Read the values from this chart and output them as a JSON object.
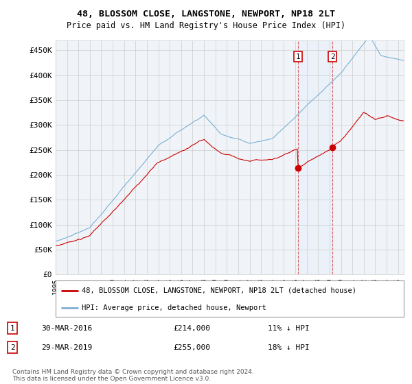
{
  "title": "48, BLOSSOM CLOSE, LANGSTONE, NEWPORT, NP18 2LT",
  "subtitle": "Price paid vs. HM Land Registry's House Price Index (HPI)",
  "ylabel_ticks": [
    "£0",
    "£50K",
    "£100K",
    "£150K",
    "£200K",
    "£250K",
    "£300K",
    "£350K",
    "£400K",
    "£450K"
  ],
  "ytick_values": [
    0,
    50000,
    100000,
    150000,
    200000,
    250000,
    300000,
    350000,
    400000,
    450000
  ],
  "ylim": [
    0,
    470000
  ],
  "xlim_start": 1995.0,
  "xlim_end": 2025.5,
  "transaction1": {
    "date": 2016.25,
    "price": 214000,
    "label": "1",
    "text": "30-MAR-2016",
    "amount": "£214,000",
    "hpi": "11% ↓ HPI"
  },
  "transaction2": {
    "date": 2019.25,
    "price": 255000,
    "label": "2",
    "text": "29-MAR-2019",
    "amount": "£255,000",
    "hpi": "18% ↓ HPI"
  },
  "legend_property": "48, BLOSSOM CLOSE, LANGSTONE, NEWPORT, NP18 2LT (detached house)",
  "legend_hpi": "HPI: Average price, detached house, Newport",
  "property_color": "#cc0000",
  "hpi_color": "#7bafd4",
  "footnote": "Contains HM Land Registry data © Crown copyright and database right 2024.\nThis data is licensed under the Open Government Licence v3.0.",
  "background_color": "#ffffff",
  "plot_bg_color": "#f0f4f8"
}
